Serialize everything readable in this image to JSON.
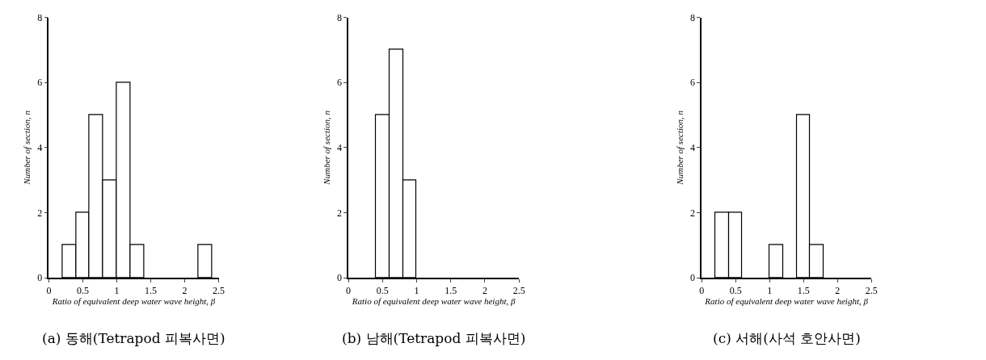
{
  "chart_data": [
    {
      "type": "histogram",
      "bins": [
        0.2,
        0.4,
        0.6,
        0.8,
        1.0,
        1.2,
        1.4,
        1.6,
        1.8,
        2.0,
        2.2,
        2.4
      ],
      "values": [
        1,
        2,
        5,
        3,
        6,
        1,
        0,
        0,
        0,
        0,
        1
      ],
      "color": "#ffffff",
      "xlabel": "Ratio of equivalent deep water wave height, β",
      "ylabel": "Number of section, n",
      "xlim": [
        0,
        2.5
      ],
      "xticks": [
        0,
        {
          "value": 0.5,
          "label": "0.5"
        },
        1,
        {
          "value": 1.5,
          "label": "1.5"
        },
        2,
        {
          "value": 2.5,
          "label": "2.5"
        }
      ],
      "ylim": [
        0,
        8
      ],
      "yticks": [
        0,
        2,
        4,
        6,
        8
      ],
      "annotations": [
        "(a) 동해(Tetrapod 피복사면)"
      ]
    },
    {
      "type": "histogram",
      "bins": [
        0.4,
        0.6,
        0.8,
        1.0
      ],
      "values": [
        5,
        7,
        3
      ],
      "color": "#ffffff",
      "xlabel": "Ratio of equivalent deep water wave height, β",
      "ylabel": "Number of section, n",
      "xlim": [
        0,
        2.5
      ],
      "xticks": [
        0,
        {
          "value": 0.5,
          "label": "0.5"
        },
        1,
        {
          "value": 1.5,
          "label": "1.5"
        },
        2,
        {
          "value": 2.5,
          "label": "2.5"
        }
      ],
      "ylim": [
        0,
        8
      ],
      "yticks": [
        0,
        2,
        4,
        6,
        8
      ],
      "annotations": [
        "(b) 남해(Tetrapod 피복사면)"
      ]
    },
    {
      "type": "histogram",
      "bins": [
        0.2,
        0.4,
        0.6,
        0.8,
        1.0,
        1.2,
        1.4,
        1.6,
        1.8
      ],
      "values": [
        2,
        2,
        0,
        0,
        1,
        0,
        5,
        1
      ],
      "color": "#ffffff",
      "xlabel": "Ratio of equivalent deep water wave height, β",
      "ylabel": "Number of section, n",
      "xlim": [
        0,
        2.5
      ],
      "xticks": [
        0,
        {
          "value": 0.5,
          "label": "0.5"
        },
        1,
        {
          "value": 1.5,
          "label": "1.5"
        },
        2,
        {
          "value": 2.5,
          "label": "2.5"
        }
      ],
      "ylim": [
        0,
        8
      ],
      "yticks": [
        0,
        2,
        4,
        6,
        8
      ],
      "annotations": [
        "(c) 서해(사석 호안사면)"
      ]
    }
  ]
}
